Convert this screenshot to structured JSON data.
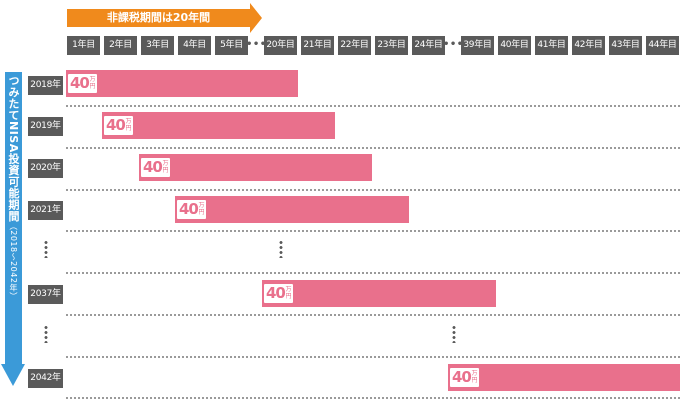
{
  "banner": {
    "label": "非課税期間は20年間"
  },
  "header_years": [
    "1年目",
    "2年目",
    "3年目",
    "4年目",
    "5年目",
    "20年目",
    "21年目",
    "22年目",
    "23年目",
    "24年目",
    "39年目",
    "40年目",
    "41年目",
    "42年目",
    "43年目",
    "44年目"
  ],
  "ellipsis": "•••",
  "side": {
    "label": "つみたてNISA投資可能期間",
    "sub": "（2018～2042年）"
  },
  "rows": [
    {
      "year": "2018年",
      "amount": "40",
      "unit": "万円"
    },
    {
      "year": "2019年",
      "amount": "40",
      "unit": "万円"
    },
    {
      "year": "2020年",
      "amount": "40",
      "unit": "万円"
    },
    {
      "year": "2021年",
      "amount": "40",
      "unit": "万円"
    },
    {
      "year": "2037年",
      "amount": "40",
      "unit": "万円"
    },
    {
      "year": "2042年",
      "amount": "40",
      "unit": "万円"
    }
  ],
  "colors": {
    "banner": "#f08a1c",
    "side_arrow": "#3b9ad8",
    "bar": "#e9708c",
    "header_bg": "#5a5a5a"
  }
}
